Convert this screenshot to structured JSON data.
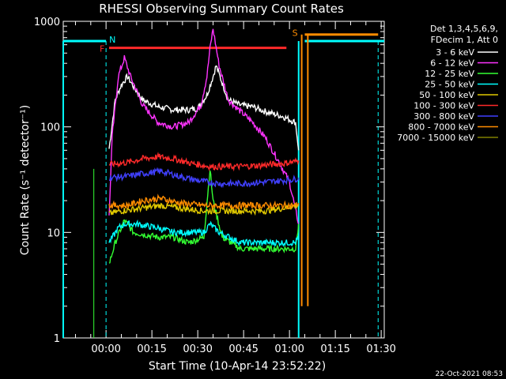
{
  "chart_data": {
    "type": "line",
    "title": "RHESSI Observing Summary Count Rates",
    "xlabel": "Start Time (10-Apr-14 23:52:22)",
    "ylabel": "Count Rate (s⁻¹ detector⁻¹)",
    "y_scale": "log",
    "ylim": [
      1,
      1000
    ],
    "xlim_minutes": [
      -6,
      99
    ],
    "x_ticks": [
      {
        "label": "00:00",
        "m": 8
      },
      {
        "label": "00:15",
        "m": 23
      },
      {
        "label": "00:30",
        "m": 38
      },
      {
        "label": "00:45",
        "m": 53
      },
      {
        "label": "01:00",
        "m": 68
      },
      {
        "label": "01:15",
        "m": 83
      },
      {
        "label": "01:30",
        "m": 98
      }
    ],
    "y_ticks": [
      {
        "label": "1",
        "v": 1
      },
      {
        "label": "10",
        "v": 10
      },
      {
        "label": "100",
        "v": 100
      },
      {
        "label": "1000",
        "v": 1000
      }
    ],
    "legend_header": [
      "Det 1,3,4,5,6,9,",
      "FDecim 1, Att 0"
    ],
    "legend_position": "right",
    "series": [
      {
        "name": "3 - 6 keV",
        "color": "#ffffff",
        "points": [
          [
            9,
            62
          ],
          [
            11,
            180
          ],
          [
            13,
            250
          ],
          [
            15,
            300
          ],
          [
            17,
            240
          ],
          [
            20,
            180
          ],
          [
            25,
            155
          ],
          [
            30,
            145
          ],
          [
            35,
            145
          ],
          [
            38,
            150
          ],
          [
            41,
            200
          ],
          [
            43,
            300
          ],
          [
            44,
            380
          ],
          [
            46,
            260
          ],
          [
            48,
            180
          ],
          [
            52,
            160
          ],
          [
            56,
            155
          ],
          [
            60,
            140
          ],
          [
            66,
            125
          ],
          [
            70,
            110
          ],
          [
            71,
            60
          ]
        ]
      },
      {
        "name": "6 - 12 keV",
        "color": "#ff33ff",
        "points": [
          [
            9,
            14
          ],
          [
            10,
            80
          ],
          [
            12,
            300
          ],
          [
            14,
            450
          ],
          [
            16,
            300
          ],
          [
            20,
            160
          ],
          [
            25,
            110
          ],
          [
            30,
            100
          ],
          [
            35,
            110
          ],
          [
            39,
            160
          ],
          [
            41,
            300
          ],
          [
            42,
            550
          ],
          [
            43,
            850
          ],
          [
            45,
            380
          ],
          [
            48,
            180
          ],
          [
            52,
            140
          ],
          [
            56,
            110
          ],
          [
            60,
            80
          ],
          [
            64,
            50
          ],
          [
            68,
            30
          ],
          [
            71,
            12
          ]
        ]
      },
      {
        "name": "12 - 25 keV",
        "color": "#33ff33",
        "points": [
          [
            9,
            5
          ],
          [
            11,
            8
          ],
          [
            14,
            13
          ],
          [
            17,
            10
          ],
          [
            25,
            9
          ],
          [
            30,
            9
          ],
          [
            35,
            8
          ],
          [
            40,
            9
          ],
          [
            42,
            40
          ],
          [
            43,
            20
          ],
          [
            46,
            9
          ],
          [
            52,
            7
          ],
          [
            60,
            7
          ],
          [
            66,
            7
          ],
          [
            70,
            7
          ],
          [
            71,
            12
          ]
        ]
      },
      {
        "name": "25 - 50 keV",
        "color": "#00ffff",
        "points": [
          [
            9,
            8
          ],
          [
            12,
            11
          ],
          [
            14,
            12
          ],
          [
            18,
            12
          ],
          [
            25,
            11
          ],
          [
            30,
            10
          ],
          [
            35,
            10
          ],
          [
            40,
            10
          ],
          [
            42,
            12
          ],
          [
            45,
            10
          ],
          [
            52,
            8
          ],
          [
            60,
            8
          ],
          [
            66,
            8
          ],
          [
            70,
            8
          ],
          [
            71,
            9
          ]
        ]
      },
      {
        "name": "50 - 100 keV",
        "color": "#e0c800",
        "points": [
          [
            9,
            15
          ],
          [
            13,
            16
          ],
          [
            20,
            17
          ],
          [
            26,
            18
          ],
          [
            32,
            17
          ],
          [
            40,
            16
          ],
          [
            50,
            16
          ],
          [
            60,
            16
          ],
          [
            66,
            17
          ],
          [
            70,
            18
          ],
          [
            71,
            18
          ]
        ]
      },
      {
        "name": "100 - 300 keV",
        "color": "#ff2a2a",
        "points": [
          [
            9,
            44
          ],
          [
            15,
            46
          ],
          [
            20,
            50
          ],
          [
            25,
            52
          ],
          [
            30,
            50
          ],
          [
            36,
            45
          ],
          [
            42,
            42
          ],
          [
            50,
            42
          ],
          [
            58,
            43
          ],
          [
            66,
            45
          ],
          [
            70,
            47
          ],
          [
            71,
            48
          ]
        ]
      },
      {
        "name": "300 - 800 keV",
        "color": "#4040ff",
        "points": [
          [
            9,
            33
          ],
          [
            15,
            34
          ],
          [
            20,
            36
          ],
          [
            26,
            38
          ],
          [
            32,
            34
          ],
          [
            38,
            31
          ],
          [
            45,
            29
          ],
          [
            52,
            29
          ],
          [
            60,
            30
          ],
          [
            66,
            31
          ],
          [
            70,
            32
          ],
          [
            71,
            33
          ]
        ]
      },
      {
        "name": "800 - 7000 keV",
        "color": "#ff8c00",
        "points": [
          [
            9,
            18
          ],
          [
            15,
            18
          ],
          [
            20,
            20
          ],
          [
            26,
            21
          ],
          [
            32,
            19
          ],
          [
            40,
            18
          ],
          [
            50,
            18
          ],
          [
            60,
            18
          ],
          [
            66,
            18
          ],
          [
            70,
            18
          ],
          [
            71,
            19
          ]
        ]
      },
      {
        "name": "7000 - 15000 keV",
        "color": "#808000",
        "points": []
      }
    ],
    "annotations": [
      {
        "label": "N",
        "color": "#00ffff"
      },
      {
        "label": "F",
        "color": "#ff2a2a"
      },
      {
        "label": "S",
        "color": "#ff8c00"
      }
    ],
    "overlays": {
      "night_cyan": {
        "color": "#00ffff",
        "level": 650,
        "segments": [
          [
            -6,
            8
          ],
          [
            73,
            99
          ]
        ],
        "verticals_solid": [
          -6,
          71
        ],
        "verticals_dashed": [
          8,
          97
        ]
      },
      "flare_red": {
        "color": "#ff2a2a",
        "level": 560,
        "x": [
          9,
          67
        ]
      },
      "saa_orange": {
        "color": "#ff8c00",
        "level": 750,
        "x": [
          73,
          97
        ],
        "verticals_solid": [
          72,
          74
        ]
      },
      "green_vertical": {
        "color": "#33ff33",
        "x": 4
      }
    },
    "timestamp": "22-Oct-2021 08:53",
    "grid": false
  }
}
